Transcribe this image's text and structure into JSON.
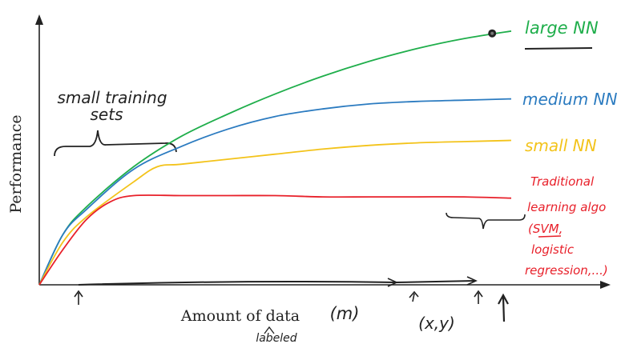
{
  "chart_data": {
    "type": "line",
    "title": "",
    "xlabel": "Amount of data",
    "ylabel": "Performance",
    "x_annotation": "(m)",
    "x_sublabel": "labeled",
    "x_note": "(x,y)",
    "xlim": [
      0,
      100
    ],
    "ylim": [
      0,
      100
    ],
    "grid": false,
    "series": [
      {
        "name": "large NN",
        "label_lines": [
          "large NN"
        ],
        "color": "#1fae4b",
        "x": [
          0,
          5,
          10,
          20,
          30,
          40,
          50,
          60,
          70,
          80,
          90,
          100
        ],
        "y": [
          0,
          20,
          31,
          47,
          59,
          68,
          76,
          83,
          89,
          94,
          98,
          101
        ]
      },
      {
        "name": "medium NN",
        "label_lines": [
          "medium NN"
        ],
        "color": "#2b7bc0",
        "x": [
          0,
          5,
          10,
          20,
          30,
          40,
          50,
          60,
          70,
          80,
          90,
          100
        ],
        "y": [
          0,
          20,
          30,
          46,
          55,
          62,
          67,
          70,
          72,
          73,
          73.5,
          74
        ]
      },
      {
        "name": "small NN",
        "label_lines": [
          "small NN"
        ],
        "color": "#f3c31a",
        "x": [
          0,
          5,
          10,
          20,
          25,
          30,
          40,
          50,
          60,
          70,
          80,
          90,
          100
        ],
        "y": [
          0,
          17,
          27,
          41,
          47,
          48,
          50,
          52,
          54,
          55.5,
          56.5,
          57,
          57.5
        ]
      },
      {
        "name": "Traditional learning algo (SVM, logistic regression,...)",
        "label_lines": [
          "Traditional",
          "learning algo",
          "(SVM,",
          "logistic",
          "regression,...)"
        ],
        "color": "#e8202a",
        "x": [
          0,
          5,
          10,
          15,
          20,
          30,
          40,
          50,
          60,
          70,
          80,
          90,
          100
        ],
        "y": [
          0,
          14,
          26,
          33,
          35.5,
          35.5,
          35.5,
          35.5,
          35,
          35,
          35,
          35,
          34.5
        ]
      }
    ],
    "annotations": [
      {
        "text_lines": [
          "small training",
          "sets"
        ]
      }
    ]
  }
}
